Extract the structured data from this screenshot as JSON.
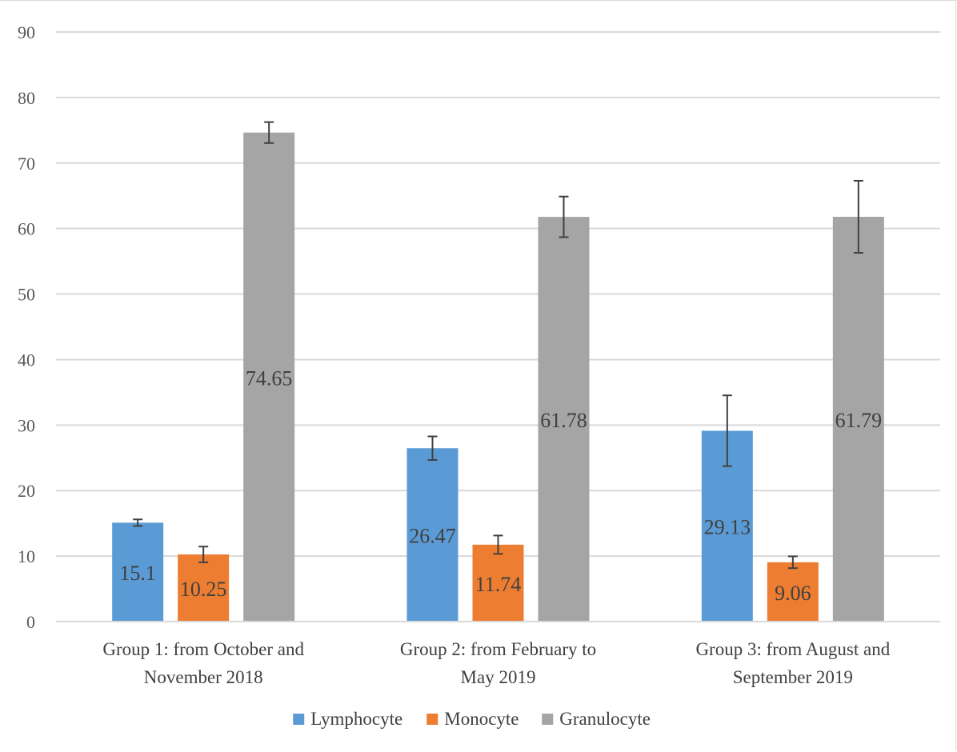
{
  "chart_data": {
    "type": "bar",
    "title": "",
    "xlabel": "",
    "ylabel": "",
    "ylim": [
      0,
      90
    ],
    "yticks": [
      0,
      10,
      20,
      30,
      40,
      50,
      60,
      70,
      80,
      90
    ],
    "grid": true,
    "legend_position": "bottom",
    "categories": [
      [
        "Group 1: from October and",
        "November 2018"
      ],
      [
        "Group 2: from February to",
        "May 2019"
      ],
      [
        "Group 3: from August and",
        "September 2019"
      ]
    ],
    "series": [
      {
        "name": "Lymphocyte",
        "color": "#5b9bd5",
        "values": [
          15.1,
          26.47,
          29.13
        ],
        "error": [
          0.5,
          1.8,
          5.4
        ]
      },
      {
        "name": "Monocyte",
        "color": "#ed7d31",
        "values": [
          10.25,
          11.74,
          9.06
        ],
        "error": [
          1.2,
          1.4,
          0.9
        ]
      },
      {
        "name": "Granulocyte",
        "color": "#a5a5a5",
        "values": [
          74.65,
          61.78,
          61.79
        ],
        "error": [
          1.6,
          3.1,
          5.5
        ]
      }
    ]
  }
}
